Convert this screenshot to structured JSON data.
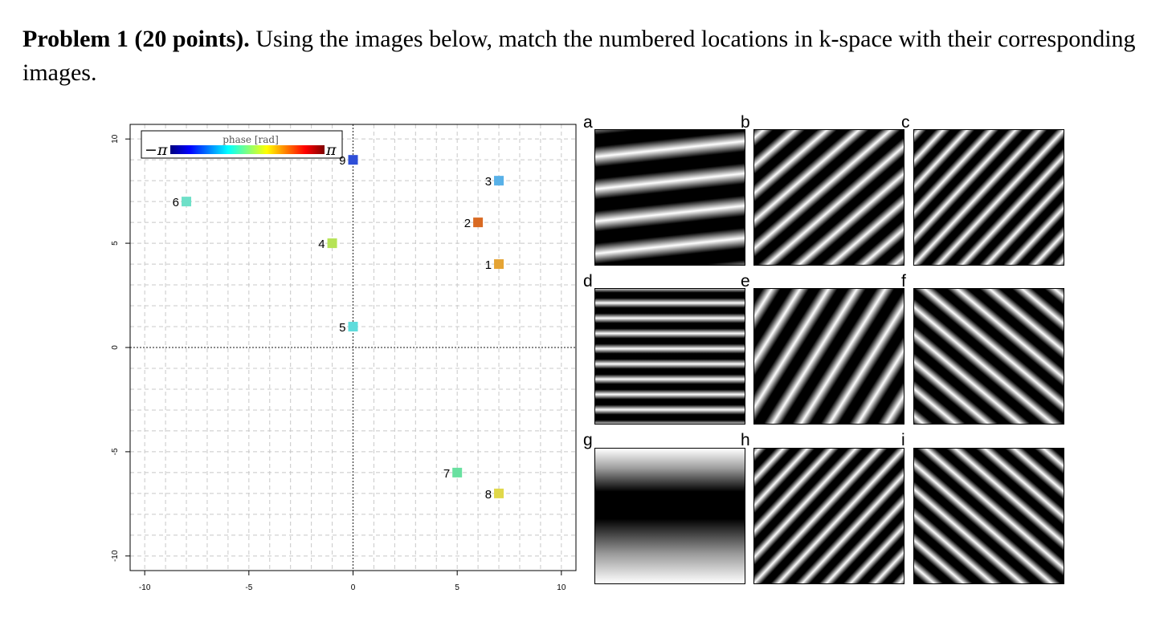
{
  "problem": {
    "heading": "Problem 1 (20 points).",
    "text": "Using the images below, match the numbered locations in k-space with their corresponding images."
  },
  "chart_data": {
    "type": "scatter",
    "xlim": [
      -10.7,
      10.7
    ],
    "ylim": [
      -10.7,
      10.7
    ],
    "xticks": [
      -10,
      -5,
      0,
      5,
      10
    ],
    "yticks": [
      -10,
      -5,
      0,
      5,
      10
    ],
    "grid": true,
    "legend": {
      "title": "phase [rad]",
      "min_label": "−π",
      "max_label": "π",
      "placement": "top-left",
      "colormap": [
        "#00007f",
        "#0000ff",
        "#007fff",
        "#00ffff",
        "#7fff7f",
        "#ffff00",
        "#ff7f00",
        "#ff0000",
        "#7f0000"
      ]
    },
    "points": [
      {
        "label": "1",
        "x": 7,
        "y": 4,
        "color": "#e5a434"
      },
      {
        "label": "2",
        "x": 6,
        "y": 6,
        "color": "#d96a22"
      },
      {
        "label": "3",
        "x": 7,
        "y": 8,
        "color": "#58b1e8"
      },
      {
        "label": "4",
        "x": -1,
        "y": 5,
        "color": "#b6e356"
      },
      {
        "label": "5",
        "x": 0,
        "y": 1,
        "color": "#5fdcdc"
      },
      {
        "label": "6",
        "x": -8,
        "y": 7,
        "color": "#6ee0c8"
      },
      {
        "label": "7",
        "x": 5,
        "y": -6,
        "color": "#69e0a0"
      },
      {
        "label": "8",
        "x": 7,
        "y": -7,
        "color": "#e0d84a"
      },
      {
        "label": "9",
        "x": 0,
        "y": 9,
        "color": "#2f4fd8"
      }
    ]
  },
  "panels": [
    {
      "letter": "a",
      "angle": -6,
      "period": 40
    },
    {
      "letter": "d",
      "angle": 0,
      "period": 19
    },
    {
      "letter": "g",
      "angle": 0,
      "period": 340
    },
    {
      "letter": "b",
      "angle": -41,
      "period": 26
    },
    {
      "letter": "e",
      "angle": -58,
      "period": 30
    },
    {
      "letter": "h",
      "angle": -47,
      "period": 22
    },
    {
      "letter": "c",
      "angle": -47,
      "period": 22
    },
    {
      "letter": "f",
      "angle": 40,
      "period": 26
    },
    {
      "letter": "i",
      "angle": 41,
      "period": 24
    }
  ]
}
